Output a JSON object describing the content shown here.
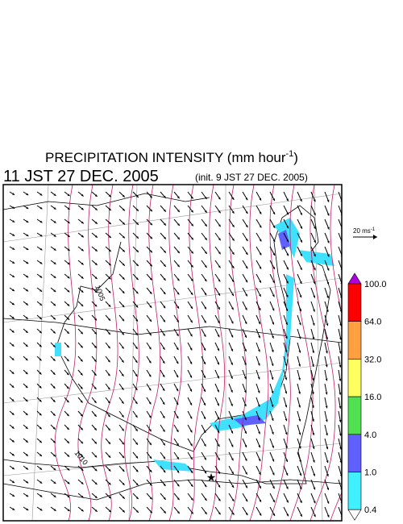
{
  "header": {
    "title": "PRECIPITATION INTENSITY (mm hour",
    "title_sup": "-1",
    "title_end": ")",
    "valid_time": "11 JST 27 DEC. 2005",
    "init_time": "(init. 9 JST 27 DEC. 2005)"
  },
  "wind_scale": {
    "label": "20 ms",
    "label_sup": "-1"
  },
  "isobar_labels": [
    "1005",
    "1010"
  ],
  "colorbar": {
    "labels": [
      "100.0",
      "64.0",
      "32.0",
      "16.0",
      "4.0",
      "1.0",
      "0.4"
    ]
  }
}
